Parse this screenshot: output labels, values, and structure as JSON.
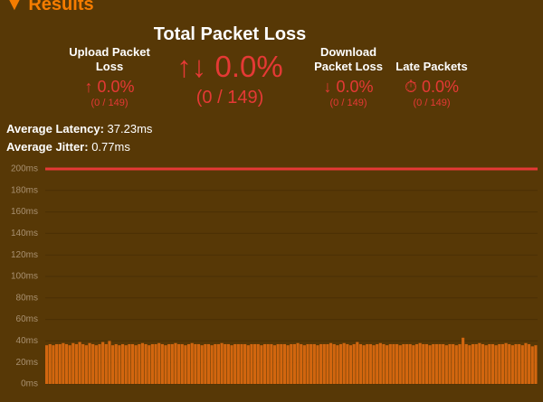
{
  "header": {
    "title": "Results"
  },
  "stats": {
    "total": {
      "label": "Total Packet Loss",
      "value": "0.0%",
      "count": "(0 / 149)"
    },
    "upload": {
      "label": "Upload Packet Loss",
      "value": "0.0%",
      "count": "(0 / 149)"
    },
    "download": {
      "label": "Download Packet Loss",
      "value": "0.0%",
      "count": "(0 / 149)"
    },
    "late": {
      "label": "Late Packets",
      "value": "0.0%",
      "count": "(0 / 149)"
    }
  },
  "summary": {
    "latency": {
      "label": "Average Latency:",
      "value": "37.23ms"
    },
    "jitter": {
      "label": "Average Jitter:",
      "value": "0.77ms"
    }
  },
  "chart_data": {
    "type": "bar",
    "color": "#d2660f",
    "threshold": 200,
    "threshold_color": "#e53935",
    "grid": true,
    "ylim": [
      0,
      200
    ],
    "yticks": [
      {
        "value": 0,
        "label": "0ms"
      },
      {
        "value": 20,
        "label": "20ms"
      },
      {
        "value": 40,
        "label": "40ms"
      },
      {
        "value": 60,
        "label": "60ms"
      },
      {
        "value": 80,
        "label": "80ms"
      },
      {
        "value": 100,
        "label": "100ms"
      },
      {
        "value": 120,
        "label": "120ms"
      },
      {
        "value": 140,
        "label": "140ms"
      },
      {
        "value": 160,
        "label": "160ms"
      },
      {
        "value": 180,
        "label": "180ms"
      },
      {
        "value": 200,
        "label": "200ms"
      }
    ],
    "values": [
      36,
      37,
      36,
      37,
      37,
      38,
      37,
      36,
      38,
      37,
      39,
      37,
      36,
      38,
      37,
      36,
      37,
      39,
      37,
      40,
      36,
      37,
      36,
      37,
      36,
      37,
      37,
      36,
      37,
      38,
      37,
      36,
      37,
      37,
      38,
      37,
      36,
      37,
      37,
      38,
      37,
      37,
      36,
      37,
      38,
      37,
      37,
      36,
      37,
      37,
      36,
      37,
      37,
      38,
      37,
      37,
      36,
      37,
      37,
      37,
      37,
      36,
      37,
      37,
      37,
      36,
      37,
      37,
      37,
      36,
      37,
      37,
      37,
      36,
      37,
      37,
      38,
      37,
      36,
      37,
      37,
      37,
      36,
      37,
      37,
      37,
      38,
      37,
      36,
      37,
      38,
      37,
      36,
      37,
      39,
      37,
      36,
      37,
      37,
      36,
      37,
      38,
      37,
      36,
      37,
      37,
      37,
      36,
      37,
      37,
      37,
      36,
      37,
      38,
      37,
      37,
      36,
      37,
      37,
      37,
      37,
      36,
      37,
      37,
      36,
      37,
      43,
      37,
      36,
      37,
      37,
      38,
      37,
      36,
      37,
      37,
      36,
      37,
      37,
      38,
      37,
      36,
      37,
      37,
      36,
      38,
      37,
      35,
      36
    ]
  }
}
